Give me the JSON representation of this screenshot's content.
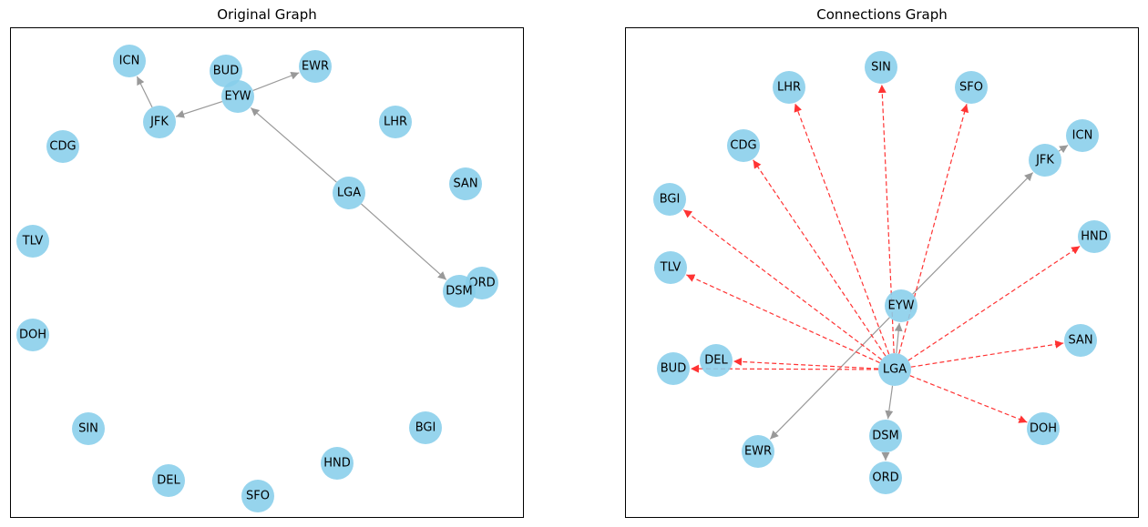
{
  "panels": {
    "original": {
      "title": "Original Graph",
      "nodes": [
        "ICN",
        "BUD",
        "EWR",
        "EYW",
        "JFK",
        "LHR",
        "CDG",
        "SAN",
        "LGA",
        "TLV",
        "ORD",
        "DSM",
        "DOH",
        "SIN",
        "BGI",
        "DEL",
        "HND",
        "SFO"
      ],
      "edges": [
        {
          "from": "JFK",
          "to": "ICN",
          "style": "solid"
        },
        {
          "from": "EYW",
          "to": "EWR",
          "style": "solid"
        },
        {
          "from": "EYW",
          "to": "JFK",
          "style": "solid"
        },
        {
          "from": "LGA",
          "to": "EYW",
          "style": "solid"
        },
        {
          "from": "LGA",
          "to": "DSM",
          "style": "solid"
        }
      ]
    },
    "connections": {
      "title": "Connections Graph",
      "nodes": [
        "SIN",
        "LHR",
        "SFO",
        "CDG",
        "ICN",
        "JFK",
        "BGI",
        "HND",
        "TLV",
        "EYW",
        "SAN",
        "DEL",
        "BUD",
        "LGA",
        "DOH",
        "DSM",
        "EWR",
        "ORD"
      ],
      "edges": [
        {
          "from": "LGA",
          "to": "EYW",
          "style": "solid"
        },
        {
          "from": "LGA",
          "to": "DSM",
          "style": "solid"
        },
        {
          "from": "DSM",
          "to": "ORD",
          "style": "solid"
        },
        {
          "from": "EYW",
          "to": "JFK",
          "style": "solid"
        },
        {
          "from": "EYW",
          "to": "EWR",
          "style": "solid"
        },
        {
          "from": "JFK",
          "to": "ICN",
          "style": "solid"
        },
        {
          "from": "LGA",
          "to": "SIN",
          "style": "dashed"
        },
        {
          "from": "LGA",
          "to": "LHR",
          "style": "dashed"
        },
        {
          "from": "LGA",
          "to": "SFO",
          "style": "dashed"
        },
        {
          "from": "LGA",
          "to": "CDG",
          "style": "dashed"
        },
        {
          "from": "LGA",
          "to": "BGI",
          "style": "dashed"
        },
        {
          "from": "LGA",
          "to": "TLV",
          "style": "dashed"
        },
        {
          "from": "LGA",
          "to": "HND",
          "style": "dashed"
        },
        {
          "from": "LGA",
          "to": "SAN",
          "style": "dashed"
        },
        {
          "from": "LGA",
          "to": "DEL",
          "style": "dashed"
        },
        {
          "from": "LGA",
          "to": "BUD",
          "style": "dashed"
        },
        {
          "from": "LGA",
          "to": "DOH",
          "style": "dashed"
        }
      ]
    }
  },
  "colors": {
    "node_fill": "#87ceeb",
    "solid_edge": "#999999",
    "dashed_edge": "#ff3333"
  }
}
